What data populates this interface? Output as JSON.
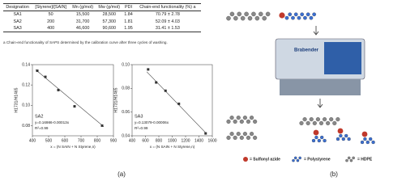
{
  "table": {
    "header": [
      "Designation",
      "[Styrene]/[SAIN]",
      "Mn (g/mol)",
      "Mw (g/mol)",
      "PDI",
      "Chain-end functionality (%) a"
    ],
    "rows": [
      [
        "SA1",
        "50",
        "15,500",
        "28,500",
        "1.84",
        "70.79 ± 2.78"
      ],
      [
        "SA2",
        "200",
        "31,700",
        "57,300",
        "1.81",
        "52.09 ± 4.03"
      ],
      [
        "SA3",
        "400",
        "46,600",
        "90,600",
        "1.95",
        "31.41 ± 1.53"
      ]
    ],
    "footnote": "a Chain-end functionality of SAPS determined by the calibration curve after three cycles of washing."
  },
  "chart_data": [
    {
      "type": "scatter",
      "x_label": "x = (N SAIN + N Styrene,n)",
      "y_label": "H1731/H1465",
      "label": "SA2",
      "equation": "y=0.16986-0.00013x",
      "r2": "R²=0.99",
      "x": [
        430,
        480,
        560,
        660,
        830
      ],
      "values": [
        0.134,
        0.128,
        0.115,
        0.099,
        0.08
      ],
      "fit": {
        "x": [
          420,
          840
        ],
        "values": [
          0.135,
          0.079
        ]
      },
      "xlim": [
        400,
        900
      ],
      "xticks": [
        400,
        500,
        600,
        700,
        800,
        900
      ],
      "ylim": [
        0.07,
        0.14
      ],
      "yticks": [
        0.08,
        {
          "value": 0.1,
          "label": "0.10"
        },
        0.12,
        0.14
      ],
      "color": "#333333"
    },
    {
      "type": "scatter",
      "x_label": "x = (N SAIN + N Styrene,n)",
      "y_label": "H1731/H1465",
      "label": "SA3",
      "equation": "y=0.13079-0.00006x",
      "r2": "R²=0.99",
      "x": [
        640,
        760,
        900,
        1100,
        1500
      ],
      "values": [
        0.096,
        0.085,
        0.078,
        0.067,
        0.042
      ],
      "fit": {
        "x": [
          620,
          1510
        ],
        "values": [
          0.094,
          0.042
        ]
      },
      "xlim": [
        400,
        1600
      ],
      "xticks": [
        400,
        600,
        800,
        1000,
        1200,
        1400,
        1600
      ],
      "ylim": [
        0.04,
        0.1
      ],
      "yticks": [
        0.04,
        0.06,
        0.08,
        {
          "value": 0.1,
          "label": "0.10"
        }
      ],
      "color": "#333333"
    }
  ],
  "panel_labels": [
    "(a)",
    "(b)"
  ],
  "diagram": {
    "machine_label": "Brabender",
    "legend": [
      "= Sulfonyl azide",
      "= Polystyrene",
      "= HDPE"
    ]
  }
}
